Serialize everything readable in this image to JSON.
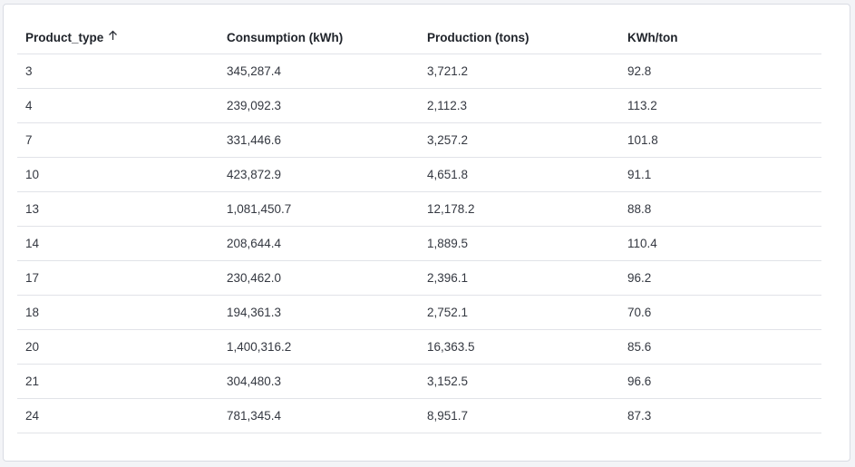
{
  "table": {
    "columns": [
      {
        "label": "Product_type",
        "sorted": "ascending",
        "sort_icon": "arrow-up-icon"
      },
      {
        "label": "Consumption (kWh)"
      },
      {
        "label": "Production (tons)"
      },
      {
        "label": "KWh/ton"
      }
    ],
    "rows": [
      [
        "3",
        "345,287.4",
        "3,721.2",
        "92.8"
      ],
      [
        "4",
        "239,092.3",
        "2,112.3",
        "113.2"
      ],
      [
        "7",
        "331,446.6",
        "3,257.2",
        "101.8"
      ],
      [
        "10",
        "423,872.9",
        "4,651.8",
        "91.1"
      ],
      [
        "13",
        "1,081,450.7",
        "12,178.2",
        "88.8"
      ],
      [
        "14",
        "208,644.4",
        "1,889.5",
        "110.4"
      ],
      [
        "17",
        "230,462.0",
        "2,396.1",
        "96.2"
      ],
      [
        "18",
        "194,361.3",
        "2,752.1",
        "70.6"
      ],
      [
        "20",
        "1,400,316.2",
        "16,363.5",
        "85.6"
      ],
      [
        "21",
        "304,480.3",
        "3,152.5",
        "96.6"
      ],
      [
        "24",
        "781,345.4",
        "8,951.7",
        "87.3"
      ]
    ]
  }
}
